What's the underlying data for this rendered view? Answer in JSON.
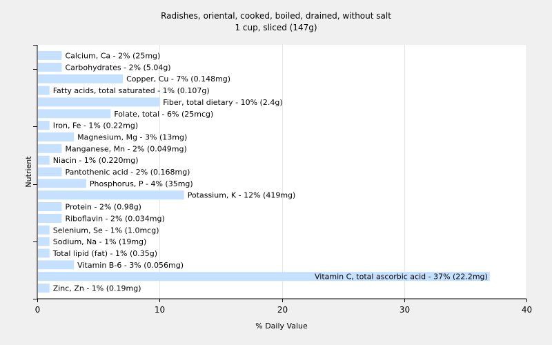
{
  "chart_data": {
    "type": "bar",
    "orientation": "horizontal",
    "title": "Radishes, oriental, cooked, boiled, drained, without salt",
    "subtitle": "1 cup, sliced (147g)",
    "xlabel": "% Daily Value",
    "ylabel": "Nutrient",
    "xlim": [
      0,
      40
    ],
    "xticks": [
      0,
      10,
      20,
      30,
      40
    ],
    "grid": true,
    "bar_color": "#c6e0ff",
    "categories": [
      "Calcium, Ca - 2% (25mg)",
      "Carbohydrates - 2% (5.04g)",
      "Copper, Cu - 7% (0.148mg)",
      "Fatty acids, total saturated - 1% (0.107g)",
      "Fiber, total dietary - 10% (2.4g)",
      "Folate, total - 6% (25mcg)",
      "Iron, Fe - 1% (0.22mg)",
      "Magnesium, Mg - 3% (13mg)",
      "Manganese, Mn - 2% (0.049mg)",
      "Niacin - 1% (0.220mg)",
      "Pantothenic acid - 2% (0.168mg)",
      "Phosphorus, P - 4% (35mg)",
      "Potassium, K - 12% (419mg)",
      "Protein - 2% (0.98g)",
      "Riboflavin - 2% (0.034mg)",
      "Selenium, Se - 1% (1.0mcg)",
      "Sodium, Na - 1% (19mg)",
      "Total lipid (fat) - 1% (0.35g)",
      "Vitamin B-6 - 3% (0.056mg)",
      "Vitamin C, total ascorbic acid - 37% (22.2mg)",
      "Zinc, Zn - 1% (0.19mg)"
    ],
    "values": [
      2,
      2,
      7,
      1,
      10,
      6,
      1,
      3,
      2,
      1,
      2,
      4,
      12,
      2,
      2,
      1,
      1,
      1,
      3,
      37,
      1
    ]
  }
}
